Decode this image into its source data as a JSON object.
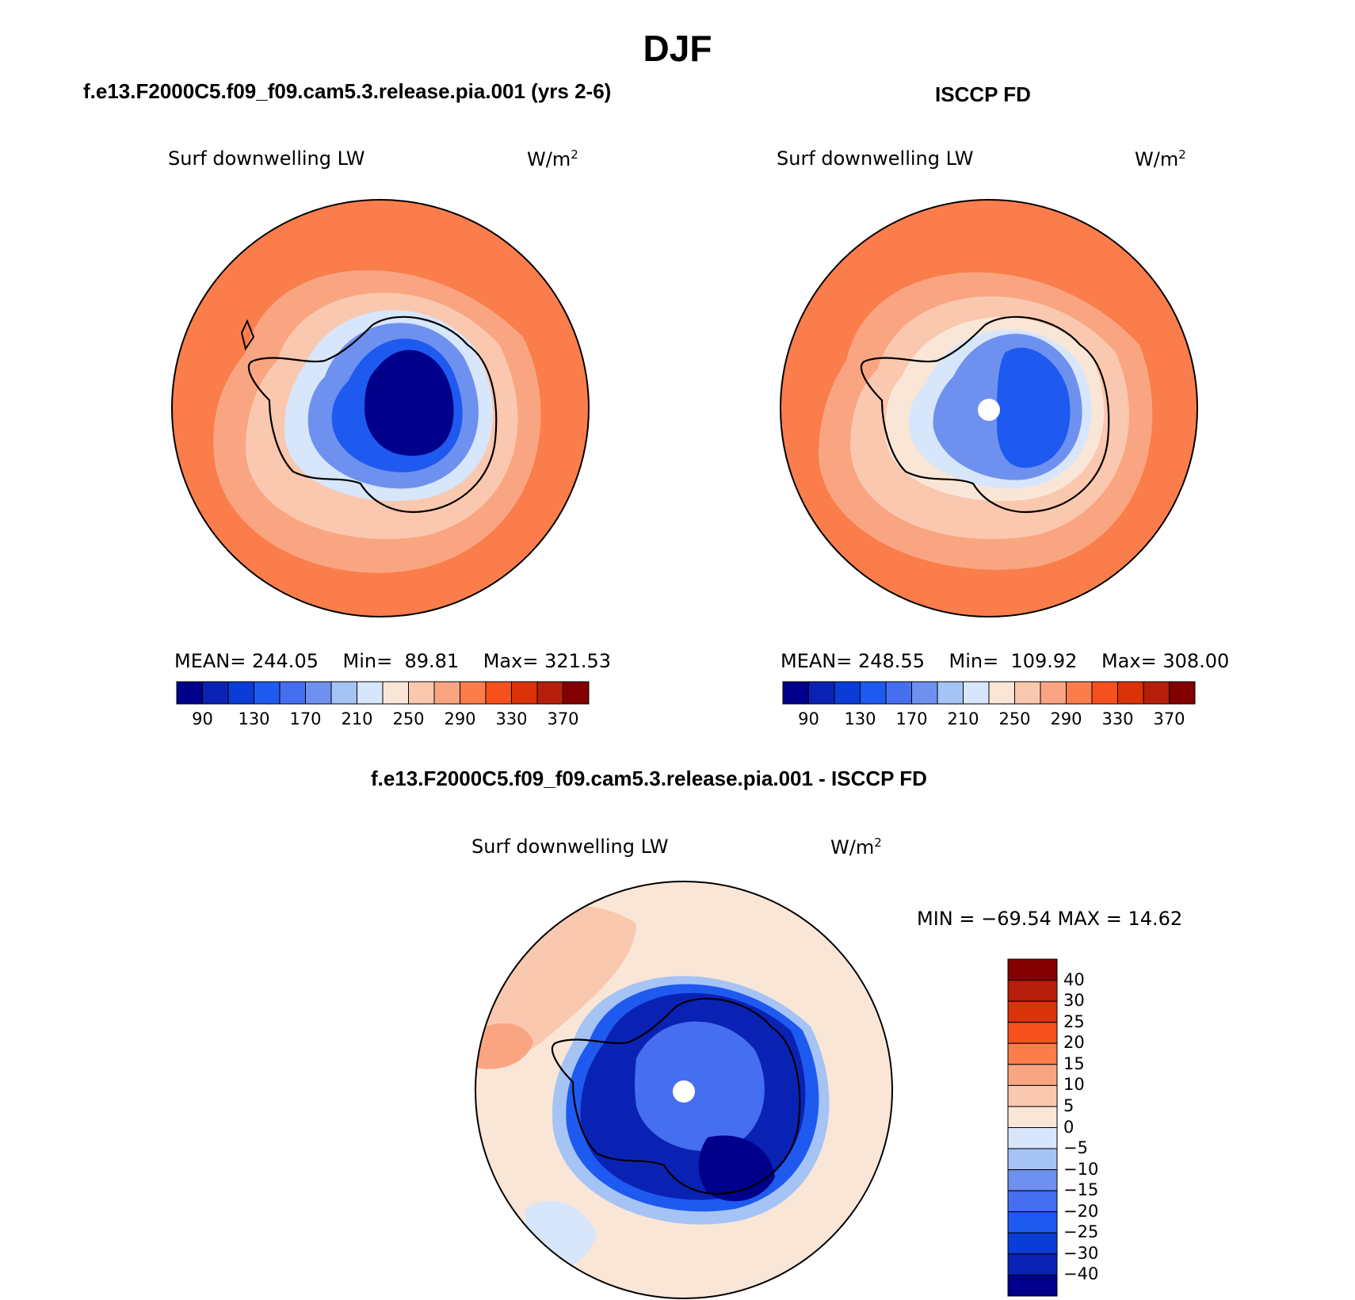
{
  "title": "DJF",
  "panels": [
    {
      "id": "model",
      "title": "f.e13.F2000C5.f09_f09.cam5.3.release.pia.001 (yrs 2-6)",
      "variable": "Surf downwelling LW",
      "units_base": "W/m",
      "units_exp": "2",
      "stats": {
        "mean_label": "MEAN=",
        "mean": "244.05",
        "min_label": "Min=",
        "min": "89.81",
        "max_label": "Max=",
        "max": "321.53"
      },
      "colorbar_ticks": [
        "90",
        "130",
        "170",
        "210",
        "250",
        "290",
        "330",
        "370"
      ]
    },
    {
      "id": "obs",
      "title": "ISCCP FD",
      "variable": "Surf downwelling LW",
      "units_base": "W/m",
      "units_exp": "2",
      "stats": {
        "mean_label": "MEAN=",
        "mean": "248.55",
        "min_label": "Min=",
        "min": "109.92",
        "max_label": "Max=",
        "max": "308.00"
      },
      "colorbar_ticks": [
        "90",
        "130",
        "170",
        "210",
        "250",
        "290",
        "330",
        "370"
      ]
    },
    {
      "id": "diff",
      "title": "f.e13.F2000C5.f09_f09.cam5.3.release.pia.001 - ISCCP FD",
      "variable": "Surf downwelling LW",
      "units_base": "W/m",
      "units_exp": "2",
      "stats_text": "MIN = −69.54 MAX =  14.62",
      "colorbar_ticks": [
        "40",
        "30",
        "25",
        "20",
        "15",
        "10",
        "5",
        "0",
        "−5",
        "−10",
        "−15",
        "−20",
        "−25",
        "−30",
        "−40"
      ]
    }
  ],
  "colors": {
    "abs_scale": [
      "#00008b",
      "#0a22b4",
      "#0a3cd7",
      "#1e5af0",
      "#466ef0",
      "#6e91f0",
      "#a5c3f5",
      "#d7e6fa",
      "#fae6d7",
      "#fac8af",
      "#faa582",
      "#fa7d4b",
      "#f5501e",
      "#dc320a",
      "#b41e0a",
      "#820000"
    ],
    "diff_scale": [
      "#00008b",
      "#0a22b4",
      "#0a3cd7",
      "#1e5af0",
      "#466ef0",
      "#6e91f0",
      "#a5c3f5",
      "#d7e6fa",
      "#fae6d7",
      "#fac8af",
      "#faa582",
      "#fa7d4b",
      "#f5501e",
      "#dc320a",
      "#b41e0a",
      "#820000"
    ]
  },
  "map": {
    "projection": "south-polar-stereographic",
    "feature": "Antarctica"
  }
}
